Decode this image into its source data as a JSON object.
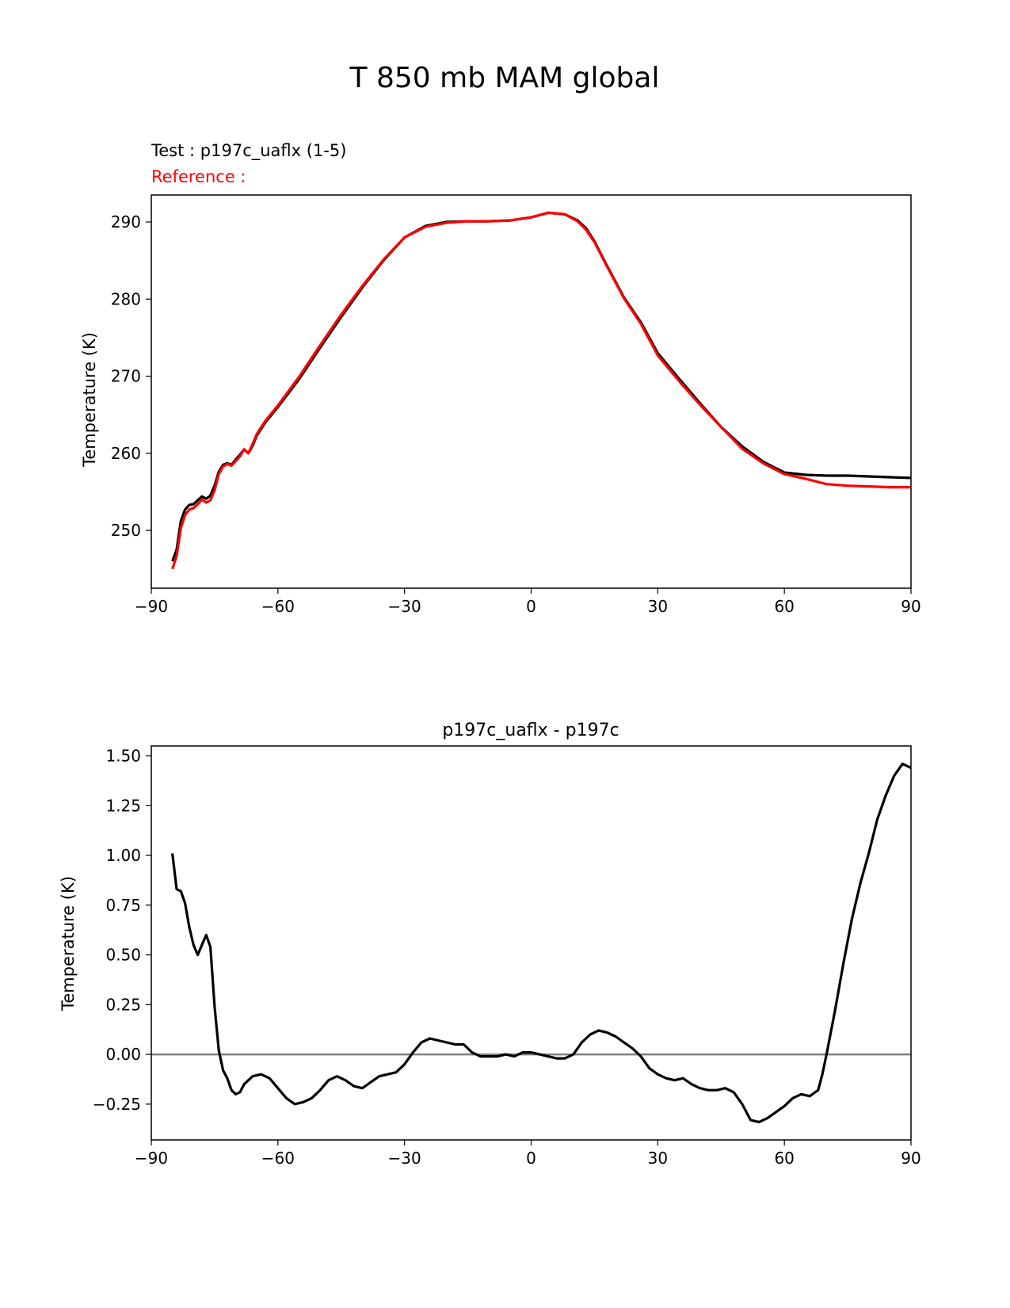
{
  "figure_title": "T 850 mb MAM global",
  "chart_data": [
    {
      "type": "line",
      "title_test": "Test : p197c_uaflx (1-5)",
      "title_reference": "Reference :",
      "xlabel": "",
      "ylabel": "Temperature (K)",
      "xlim": [
        -90,
        90
      ],
      "ylim": [
        242.5,
        293.5
      ],
      "xticks": [
        -90,
        -60,
        -30,
        0,
        30,
        60,
        90
      ],
      "xtick_labels": [
        "−90",
        "−60",
        "−30",
        "0",
        "30",
        "60",
        "90"
      ],
      "yticks": [
        250,
        260,
        270,
        280,
        290
      ],
      "ytick_labels": [
        "250",
        "260",
        "270",
        "280",
        "290"
      ],
      "series": [
        {
          "name": "test",
          "color": "#000000",
          "x": [
            -85.0,
            -84.0,
            -83.0,
            -82.0,
            -81.0,
            -80.0,
            -79.0,
            -78.0,
            -77.0,
            -76.0,
            -75.0,
            -74.0,
            -73.0,
            -72.0,
            -71.0,
            -70.0,
            -69.0,
            -68.0,
            -67.0,
            -66.0,
            -65.0,
            -63.0,
            -60.0,
            -55.0,
            -50.0,
            -45.0,
            -40.0,
            -35.0,
            -30.0,
            -25.0,
            -20.0,
            -15.0,
            -10.0,
            -5.0,
            0.0,
            4.0,
            8.0,
            11.0,
            13.0,
            15.0,
            18.0,
            22.0,
            26.0,
            30.0,
            35.0,
            40.0,
            45.0,
            50.0,
            55.0,
            60.0,
            65.0,
            70.0,
            75.0,
            80.0,
            85.0,
            90.0
          ],
          "values": [
            246.0,
            247.5,
            251.2,
            252.7,
            253.3,
            253.4,
            253.9,
            254.4,
            254.1,
            254.5,
            255.8,
            257.6,
            258.5,
            258.7,
            258.5,
            259.2,
            259.8,
            260.5,
            260.0,
            261.0,
            262.3,
            264.0,
            266.0,
            269.6,
            273.7,
            277.7,
            281.5,
            285.0,
            288.0,
            289.5,
            290.0,
            290.1,
            290.1,
            290.2,
            290.6,
            291.2,
            291.0,
            290.2,
            289.2,
            287.5,
            284.3,
            280.2,
            277.0,
            273.0,
            269.7,
            266.5,
            263.4,
            260.9,
            258.9,
            257.5,
            257.2,
            257.1,
            257.1,
            257.0,
            256.9,
            256.8
          ]
        },
        {
          "name": "reference",
          "color": "#ff0000",
          "x": [
            -85.0,
            -84.0,
            -83.0,
            -82.0,
            -81.0,
            -80.0,
            -79.0,
            -78.0,
            -77.0,
            -76.0,
            -75.0,
            -74.0,
            -73.0,
            -72.0,
            -71.0,
            -70.0,
            -69.0,
            -68.0,
            -67.0,
            -66.0,
            -65.0,
            -63.0,
            -60.0,
            -55.0,
            -50.0,
            -45.0,
            -40.0,
            -35.0,
            -30.0,
            -25.0,
            -20.0,
            -15.0,
            -10.0,
            -5.0,
            0.0,
            4.0,
            8.0,
            11.0,
            13.0,
            15.0,
            18.0,
            22.0,
            26.0,
            30.0,
            35.0,
            40.0,
            45.0,
            50.0,
            55.0,
            60.0,
            65.0,
            70.0,
            75.0,
            80.0,
            85.0,
            90.0
          ],
          "values": [
            245.0,
            246.7,
            250.3,
            252.0,
            252.7,
            252.9,
            253.4,
            254.0,
            253.6,
            253.9,
            255.2,
            257.3,
            258.3,
            258.6,
            258.4,
            259.0,
            259.6,
            260.5,
            260.0,
            261.2,
            262.5,
            264.2,
            266.2,
            269.9,
            274.0,
            278.0,
            281.7,
            285.1,
            288.0,
            289.4,
            289.9,
            290.1,
            290.1,
            290.2,
            290.6,
            291.2,
            291.0,
            290.1,
            289.0,
            287.4,
            284.2,
            280.1,
            276.8,
            272.7,
            269.4,
            266.3,
            263.4,
            260.6,
            258.7,
            257.3,
            256.7,
            256.0,
            255.8,
            255.7,
            255.6,
            255.6
          ]
        }
      ]
    },
    {
      "type": "line",
      "title": "p197c_uaflx - p197c",
      "xlabel": "",
      "ylabel": "Temperature (K)",
      "xlim": [
        -90,
        90
      ],
      "ylim": [
        -0.43,
        1.55
      ],
      "xticks": [
        -90,
        -60,
        -30,
        0,
        30,
        60,
        90
      ],
      "xtick_labels": [
        "−90",
        "−60",
        "−30",
        "0",
        "30",
        "60",
        "90"
      ],
      "yticks": [
        -0.25,
        0.0,
        0.25,
        0.5,
        0.75,
        1.0,
        1.25,
        1.5
      ],
      "ytick_labels": [
        "−0.25",
        "0.00",
        "0.25",
        "0.50",
        "0.75",
        "1.00",
        "1.25",
        "1.50"
      ],
      "zero_line": true,
      "series": [
        {
          "name": "difference",
          "color": "#000000",
          "x": [
            -85.0,
            -84.0,
            -83.0,
            -82.0,
            -81.0,
            -80.0,
            -79.0,
            -78.0,
            -77.0,
            -76.0,
            -75.0,
            -74.0,
            -73.0,
            -72.0,
            -71.0,
            -70.0,
            -69.0,
            -68.0,
            -66.0,
            -64.0,
            -62.0,
            -60.0,
            -58.0,
            -56.0,
            -54.0,
            -52.0,
            -50.0,
            -48.0,
            -46.0,
            -44.0,
            -42.0,
            -40.0,
            -38.0,
            -36.0,
            -34.0,
            -32.0,
            -30.0,
            -28.0,
            -26.0,
            -24.0,
            -22.0,
            -20.0,
            -18.0,
            -16.0,
            -14.0,
            -12.0,
            -10.0,
            -8.0,
            -6.0,
            -4.0,
            -2.0,
            0.0,
            2.0,
            4.0,
            6.0,
            8.0,
            10.0,
            12.0,
            14.0,
            16.0,
            18.0,
            20.0,
            22.0,
            24.0,
            26.0,
            28.0,
            30.0,
            32.0,
            34.0,
            36.0,
            38.0,
            40.0,
            42.0,
            44.0,
            46.0,
            48.0,
            50.0,
            52.0,
            54.0,
            56.0,
            58.0,
            60.0,
            62.0,
            64.0,
            66.0,
            68.0,
            69.0,
            70.0,
            72.0,
            74.0,
            76.0,
            78.0,
            80.0,
            82.0,
            84.0,
            86.0,
            88.0,
            90.0
          ],
          "values": [
            1.01,
            0.83,
            0.82,
            0.76,
            0.64,
            0.55,
            0.5,
            0.55,
            0.6,
            0.54,
            0.24,
            0.02,
            -0.08,
            -0.12,
            -0.18,
            -0.2,
            -0.19,
            -0.15,
            -0.11,
            -0.1,
            -0.12,
            -0.17,
            -0.22,
            -0.25,
            -0.24,
            -0.22,
            -0.18,
            -0.13,
            -0.11,
            -0.13,
            -0.16,
            -0.17,
            -0.14,
            -0.11,
            -0.1,
            -0.09,
            -0.05,
            0.01,
            0.06,
            0.08,
            0.07,
            0.06,
            0.05,
            0.05,
            0.01,
            -0.01,
            -0.01,
            -0.01,
            0.0,
            -0.01,
            0.01,
            0.01,
            0.0,
            -0.01,
            -0.02,
            -0.02,
            0.0,
            0.06,
            0.1,
            0.12,
            0.11,
            0.09,
            0.06,
            0.03,
            -0.01,
            -0.07,
            -0.1,
            -0.12,
            -0.13,
            -0.12,
            -0.15,
            -0.17,
            -0.18,
            -0.18,
            -0.17,
            -0.19,
            -0.25,
            -0.33,
            -0.34,
            -0.32,
            -0.29,
            -0.26,
            -0.22,
            -0.2,
            -0.21,
            -0.18,
            -0.1,
            0.0,
            0.22,
            0.46,
            0.68,
            0.86,
            1.01,
            1.18,
            1.3,
            1.4,
            1.46,
            1.44
          ]
        }
      ]
    }
  ]
}
